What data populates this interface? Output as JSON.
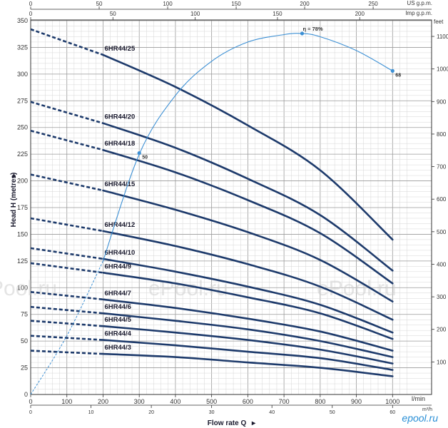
{
  "chart_data": {
    "type": "line",
    "xlabel": "Flow rate Q",
    "ylabel": "Head H (metres)",
    "x_unit": "l/min",
    "x2_unit": "m³/h",
    "y2_unit": "feet",
    "top_us_unit": "US g.p.m.",
    "top_imp_unit": "Imp g.p.m.",
    "x_ticks": [
      0,
      100,
      200,
      300,
      400,
      500,
      600,
      700,
      800,
      900,
      1000
    ],
    "y_ticks": [
      0,
      25,
      50,
      75,
      100,
      125,
      150,
      175,
      200,
      225,
      250,
      275,
      300,
      325,
      350
    ],
    "feet_ticks": [
      100,
      200,
      300,
      400,
      500,
      600,
      700,
      800,
      900,
      1000,
      1100
    ],
    "m3h_ticks": [
      0,
      10,
      20,
      30,
      40,
      50,
      60
    ],
    "us_ticks": [
      0,
      50,
      100,
      150,
      200,
      250
    ],
    "imp_ticks": [
      0,
      50,
      100,
      150,
      200
    ],
    "xlim": [
      0,
      1050
    ],
    "ylim": [
      0,
      350
    ],
    "series": [
      {
        "name": "6HR44/25",
        "y": [
          342,
          318,
          288,
          252,
          210,
          145
        ]
      },
      {
        "name": "6HR44/20",
        "y": [
          274,
          254,
          231,
          202,
          168,
          116
        ]
      },
      {
        "name": "6HR44/18",
        "y": [
          247,
          229,
          208,
          182,
          151,
          104
        ]
      },
      {
        "name": "6HR44/15",
        "y": [
          206,
          191,
          173,
          152,
          126,
          87
        ]
      },
      {
        "name": "6HR44/12",
        "y": [
          165,
          153,
          139,
          122,
          101,
          70
        ]
      },
      {
        "name": "6HR44/10",
        "y": [
          137,
          127,
          115,
          101,
          84,
          58
        ]
      },
      {
        "name": "6HR44/9",
        "y": [
          123,
          114,
          104,
          91,
          76,
          52
        ]
      },
      {
        "name": "6HR44/7",
        "y": [
          96,
          89,
          81,
          71,
          59,
          41
        ]
      },
      {
        "name": "6HR44/6",
        "y": [
          82,
          76,
          69,
          61,
          50,
          35
        ]
      },
      {
        "name": "6HR44/5",
        "y": [
          69,
          64,
          58,
          51,
          42,
          29
        ]
      },
      {
        "name": "6HR44/4",
        "y": [
          55,
          51,
          46,
          40,
          34,
          23
        ]
      },
      {
        "name": "6HR44/3",
        "y": [
          41,
          38,
          35,
          30,
          25,
          17
        ]
      }
    ],
    "x_points": [
      0,
      200,
      400,
      600,
      800,
      1000
    ],
    "dashed_until_x": 200,
    "efficiency": {
      "label": "η = 78%",
      "x": [
        0,
        100,
        200,
        300,
        400,
        500,
        600,
        700,
        750,
        800,
        900,
        1000
      ],
      "y": [
        0,
        55,
        125,
        225,
        280,
        312,
        330,
        337,
        338,
        335,
        322,
        303
      ],
      "markers": [
        {
          "x": 300,
          "y": 226,
          "label": "50"
        },
        {
          "x": 750,
          "y": 338,
          "label": ""
        },
        {
          "x": 1000,
          "y": 303,
          "label": "68"
        }
      ],
      "dashed_until_x": 200
    }
  },
  "watermarks": [
    "Pool.ru",
    "ePool.ru",
    "ePool.ru"
  ],
  "logo": "epool.ru"
}
